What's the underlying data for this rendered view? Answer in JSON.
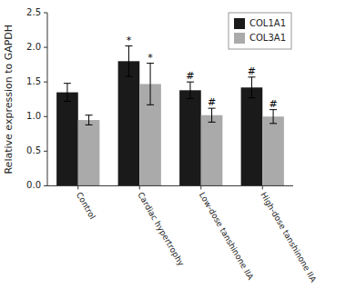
{
  "chart_data": {
    "type": "bar",
    "categories": [
      "Control",
      "Cardiac hypertrophy",
      "Low-dose tanshinone IIA",
      "High-dose tanshinone IIA"
    ],
    "series": [
      {
        "name": "COL1A1",
        "color": "#1a1a1a",
        "values": [
          1.35,
          1.8,
          1.38,
          1.42
        ],
        "errors": [
          0.13,
          0.22,
          0.12,
          0.15
        ],
        "annotations": [
          null,
          "*",
          "#",
          "#"
        ]
      },
      {
        "name": "COL3A1",
        "color": "#aaaaaa",
        "values": [
          0.95,
          1.47,
          1.02,
          1.0
        ],
        "errors": [
          0.07,
          0.3,
          0.1,
          0.1
        ],
        "annotations": [
          null,
          "*",
          "#",
          "#"
        ]
      }
    ],
    "ylabel": "Relative expression to GAPDH",
    "ylim": [
      0,
      2.5
    ],
    "yticks": [
      {
        "value": 0.0,
        "label": "0.0"
      },
      0.5,
      {
        "value": 1.0,
        "label": "1.0"
      },
      1.5,
      {
        "value": 2.0,
        "label": "2.0"
      },
      2.5
    ],
    "grid": false,
    "legend": "upper right"
  }
}
